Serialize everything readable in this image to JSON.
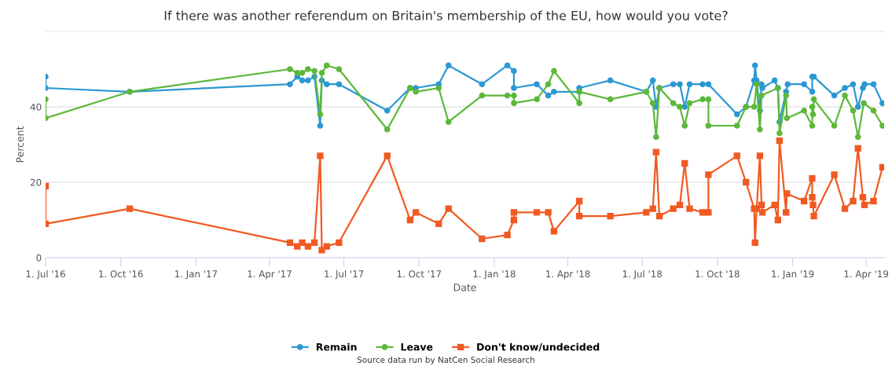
{
  "chart_data": {
    "type": "line",
    "title": "If there was another referendum on Britain's membership of the EU, how would you vote?",
    "xlabel": "Date",
    "ylabel": "Percent",
    "xlim": [
      "2016-07-01",
      "2019-04-23"
    ],
    "xticks": [
      {
        "value": "2016-07-01",
        "label": "1. Jul '16"
      },
      {
        "value": "2016-10-01",
        "label": "1. Oct '16"
      },
      {
        "value": "2017-01-01",
        "label": "1. Jan '17"
      },
      {
        "value": "2017-04-01",
        "label": "1. Apr '17"
      },
      {
        "value": "2017-07-01",
        "label": "1. Jul '17"
      },
      {
        "value": "2017-10-01",
        "label": "1. Oct '17"
      },
      {
        "value": "2018-01-01",
        "label": "1. Jan '18"
      },
      {
        "value": "2018-04-01",
        "label": "1. Apr '18"
      },
      {
        "value": "2018-07-01",
        "label": "1. Jul '18"
      },
      {
        "value": "2018-10-01",
        "label": "1. Oct '18"
      },
      {
        "value": "2019-01-01",
        "label": "1. Jan '19"
      },
      {
        "value": "2019-04-01",
        "label": "1. Apr '19"
      }
    ],
    "ylim": [
      0,
      60
    ],
    "yticks": [
      0,
      20,
      40
    ],
    "grid": "y",
    "legend": "bottom",
    "line_style": "solid",
    "series": [
      {
        "name": "Remain",
        "color": "#2b98d3",
        "marker": "circle",
        "x": [
          "2016-07-01",
          "2016-07-01",
          "2016-10-12",
          "2017-04-26",
          "2017-05-05",
          "2017-05-11",
          "2017-05-18",
          "2017-05-26",
          "2017-06-02",
          "2017-06-04",
          "2017-06-10",
          "2017-06-25",
          "2017-08-23",
          "2017-09-20",
          "2017-09-27",
          "2017-10-25",
          "2017-11-06",
          "2017-12-17",
          "2018-01-17",
          "2018-01-25",
          "2018-01-25",
          "2018-02-22",
          "2018-03-08",
          "2018-03-15",
          "2018-04-15",
          "2018-04-15",
          "2018-05-23",
          "2018-07-06",
          "2018-07-14",
          "2018-07-18",
          "2018-07-22",
          "2018-08-08",
          "2018-08-16",
          "2018-08-22",
          "2018-08-28",
          "2018-09-13",
          "2018-09-20",
          "2018-10-25",
          "2018-11-05",
          "2018-11-15",
          "2018-11-16",
          "2018-11-18",
          "2018-11-22",
          "2018-11-24",
          "2018-11-25",
          "2018-12-10",
          "2018-12-14",
          "2018-12-16",
          "2018-12-24",
          "2018-12-26",
          "2019-01-15",
          "2019-01-25",
          "2019-01-25",
          "2019-01-27",
          "2019-02-21",
          "2019-03-06",
          "2019-03-16",
          "2019-03-22",
          "2019-03-28",
          "2019-03-30",
          "2019-04-10",
          "2019-04-21"
        ],
        "values": [
          48,
          45,
          44,
          46,
          48,
          47,
          47,
          48,
          35,
          47,
          46,
          46,
          39,
          45,
          45,
          46,
          51,
          46,
          51,
          49.5,
          45,
          46,
          43,
          44,
          44,
          45,
          47,
          44,
          47,
          40,
          45,
          46,
          46,
          40,
          46,
          46,
          46,
          38,
          40,
          47,
          51,
          47,
          39,
          46,
          45,
          47,
          45,
          36,
          44,
          46,
          46,
          44,
          48,
          48,
          43,
          45,
          46,
          40,
          45,
          46,
          46,
          41
        ]
      },
      {
        "name": "Leave",
        "color": "#5cb83a",
        "marker": "circle",
        "x": [
          "2016-07-01",
          "2016-07-01",
          "2016-10-12",
          "2017-04-26",
          "2017-05-05",
          "2017-05-11",
          "2017-05-18",
          "2017-05-26",
          "2017-06-02",
          "2017-06-04",
          "2017-06-10",
          "2017-06-25",
          "2017-08-23",
          "2017-09-20",
          "2017-09-27",
          "2017-10-25",
          "2017-11-06",
          "2017-12-17",
          "2018-01-17",
          "2018-01-25",
          "2018-01-25",
          "2018-02-22",
          "2018-03-08",
          "2018-03-15",
          "2018-04-15",
          "2018-04-15",
          "2018-05-23",
          "2018-07-06",
          "2018-07-14",
          "2018-07-18",
          "2018-07-22",
          "2018-08-08",
          "2018-08-16",
          "2018-08-22",
          "2018-08-28",
          "2018-09-13",
          "2018-09-20",
          "2018-09-20",
          "2018-10-25",
          "2018-11-05",
          "2018-11-15",
          "2018-11-18",
          "2018-11-22",
          "2018-11-24",
          "2018-12-14",
          "2018-12-16",
          "2018-12-24",
          "2018-12-25",
          "2019-01-15",
          "2019-01-25",
          "2019-01-25",
          "2019-01-26",
          "2019-01-27",
          "2019-02-21",
          "2019-03-06",
          "2019-03-16",
          "2019-03-22",
          "2019-03-29",
          "2019-04-10",
          "2019-04-21"
        ],
        "values": [
          42,
          37,
          44,
          50,
          49,
          49,
          50,
          49.5,
          38,
          49,
          51,
          50,
          34,
          45,
          44,
          45,
          36,
          43,
          43,
          43,
          41,
          42,
          46,
          49.5,
          41,
          44,
          42,
          44,
          41,
          32,
          45,
          41,
          40,
          35,
          41,
          42,
          42,
          35,
          35,
          40,
          40,
          46,
          34,
          43,
          45,
          33,
          43,
          37,
          39,
          35,
          40,
          38,
          42,
          35,
          43,
          39,
          32,
          41,
          39,
          35
        ]
      },
      {
        "name": "Don't know/undecided",
        "color": "#f05a22",
        "marker": "square",
        "x": [
          "2016-07-01",
          "2016-07-01",
          "2016-10-12",
          "2017-04-26",
          "2017-05-05",
          "2017-05-11",
          "2017-05-18",
          "2017-05-26",
          "2017-06-02",
          "2017-06-04",
          "2017-06-10",
          "2017-06-25",
          "2017-08-23",
          "2017-09-20",
          "2017-09-27",
          "2017-10-25",
          "2017-11-06",
          "2017-12-17",
          "2018-01-17",
          "2018-01-25",
          "2018-01-25",
          "2018-02-22",
          "2018-03-08",
          "2018-03-15",
          "2018-04-15",
          "2018-04-15",
          "2018-05-23",
          "2018-07-06",
          "2018-07-14",
          "2018-07-18",
          "2018-07-22",
          "2018-08-08",
          "2018-08-16",
          "2018-08-22",
          "2018-08-28",
          "2018-09-13",
          "2018-09-20",
          "2018-09-20",
          "2018-10-25",
          "2018-11-05",
          "2018-11-15",
          "2018-11-16",
          "2018-11-18",
          "2018-11-22",
          "2018-11-24",
          "2018-11-25",
          "2018-12-10",
          "2018-12-14",
          "2018-12-16",
          "2018-12-24",
          "2018-12-25",
          "2019-01-15",
          "2019-01-25",
          "2019-01-25",
          "2019-01-26",
          "2019-01-27",
          "2019-02-21",
          "2019-03-06",
          "2019-03-16",
          "2019-03-22",
          "2019-03-28",
          "2019-03-30",
          "2019-04-10",
          "2019-04-21"
        ],
        "values": [
          19,
          9,
          13,
          4,
          3,
          4,
          3,
          4,
          27,
          2,
          3,
          4,
          27,
          10,
          12,
          9,
          13,
          5,
          6,
          10,
          12,
          12,
          12,
          7,
          15,
          11,
          11,
          12,
          13,
          28,
          11,
          13,
          14,
          25,
          13,
          12,
          12,
          22,
          27,
          20,
          13,
          4,
          13,
          27,
          14,
          12,
          14,
          10,
          31,
          12,
          17,
          15,
          21,
          16,
          14,
          11,
          22,
          13,
          15,
          29,
          16,
          14,
          15,
          24
        ]
      }
    ],
    "annotations": [
      "Source data run by NatCen Social Research"
    ]
  }
}
